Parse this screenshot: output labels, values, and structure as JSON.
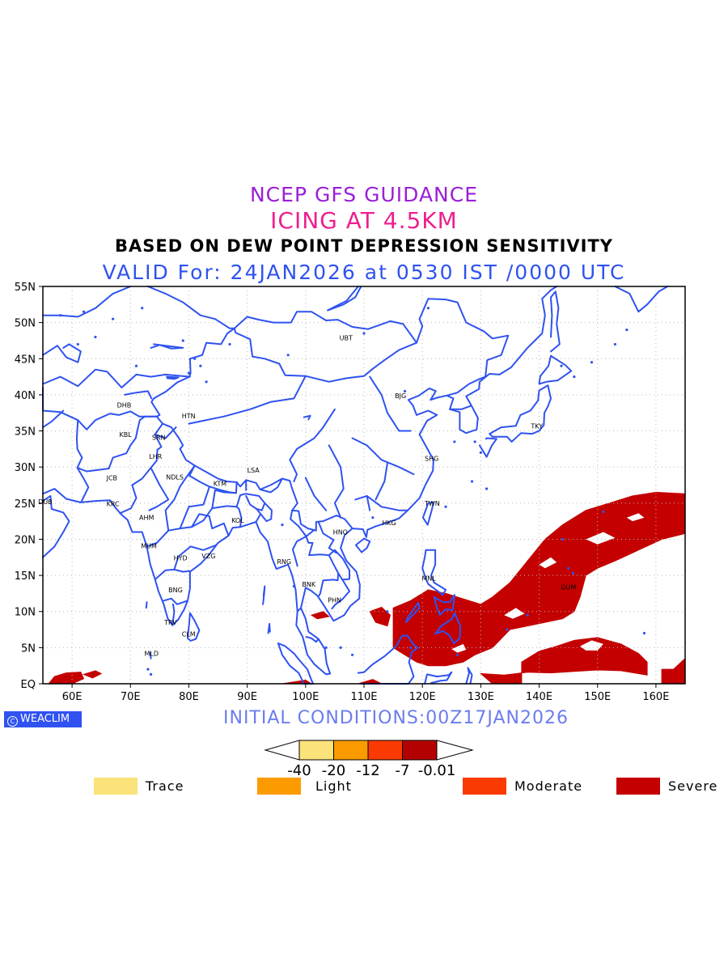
{
  "titles": {
    "line1": "NCEP GFS GUIDANCE",
    "line2": "ICING AT 4.5KM",
    "line3": "BASED ON DEW POINT DEPRESSION SENSITIVITY",
    "line4": "VALID For: 24JAN2026 at 0530 IST /0000 UTC"
  },
  "map": {
    "lon_range": [
      55,
      165
    ],
    "lat_range": [
      0,
      55
    ],
    "lat_labels": [
      "55N",
      "50N",
      "45N",
      "40N",
      "35N",
      "30N",
      "25N",
      "20N",
      "15N",
      "10N",
      "5N",
      "EQ"
    ],
    "lon_labels": [
      "60E",
      "70E",
      "80E",
      "90E",
      "100E",
      "110E",
      "120E",
      "130E",
      "140E",
      "150E",
      "160E"
    ],
    "coastline_color": "#2f52f0",
    "severe_color": "#c40000",
    "cities": [
      {
        "code": "UBT",
        "lon": 106.9,
        "lat": 47.9
      },
      {
        "code": "BJG",
        "lon": 116.4,
        "lat": 39.9
      },
      {
        "code": "DHB",
        "lon": 68.8,
        "lat": 38.6
      },
      {
        "code": "HTN",
        "lon": 79.9,
        "lat": 37.1
      },
      {
        "code": "KBL",
        "lon": 69.2,
        "lat": 34.5
      },
      {
        "code": "SRN",
        "lon": 74.8,
        "lat": 34.1
      },
      {
        "code": "TKY",
        "lon": 139.7,
        "lat": 35.7
      },
      {
        "code": "LHR",
        "lon": 74.3,
        "lat": 31.5
      },
      {
        "code": "SHG",
        "lon": 121.5,
        "lat": 31.2
      },
      {
        "code": "LSA",
        "lon": 91.1,
        "lat": 29.6
      },
      {
        "code": "JCB",
        "lon": 67.0,
        "lat": 28.5
      },
      {
        "code": "NDLS",
        "lon": 77.2,
        "lat": 28.6
      },
      {
        "code": "KTM",
        "lon": 85.3,
        "lat": 27.7
      },
      {
        "code": "DUB",
        "lon": 55.3,
        "lat": 25.2
      },
      {
        "code": "TWN",
        "lon": 121.5,
        "lat": 25.0
      },
      {
        "code": "KRC",
        "lon": 67.0,
        "lat": 24.9
      },
      {
        "code": "AHM",
        "lon": 72.6,
        "lat": 23.0
      },
      {
        "code": "KOL",
        "lon": 88.4,
        "lat": 22.6
      },
      {
        "code": "HKG",
        "lon": 114.2,
        "lat": 22.3
      },
      {
        "code": "HNO",
        "lon": 105.8,
        "lat": 21.0
      },
      {
        "code": "MUM",
        "lon": 72.9,
        "lat": 19.1
      },
      {
        "code": "HYD",
        "lon": 78.5,
        "lat": 17.4
      },
      {
        "code": "VZG",
        "lon": 83.3,
        "lat": 17.7
      },
      {
        "code": "RNG",
        "lon": 96.2,
        "lat": 16.9
      },
      {
        "code": "MNL",
        "lon": 121.0,
        "lat": 14.6
      },
      {
        "code": "BNK",
        "lon": 100.5,
        "lat": 13.8
      },
      {
        "code": "GUM",
        "lon": 144.8,
        "lat": 13.4
      },
      {
        "code": "BNG",
        "lon": 77.6,
        "lat": 13.0
      },
      {
        "code": "PHN",
        "lon": 104.9,
        "lat": 11.6
      },
      {
        "code": "TRV",
        "lon": 76.9,
        "lat": 8.5
      },
      {
        "code": "CLM",
        "lon": 79.9,
        "lat": 6.9
      },
      {
        "code": "MLD",
        "lon": 73.5,
        "lat": 4.2
      }
    ]
  },
  "footer": {
    "logo": "WEACLIM",
    "initial_conditions": "INITIAL CONDITIONS:00Z17JAN2026"
  },
  "colorbar": {
    "colors": [
      "#fbe27a",
      "#fb9b00",
      "#fa3a00",
      "#b40000"
    ],
    "tick_labels": [
      "-40",
      "-20",
      "-12",
      "-7",
      "-0.01"
    ]
  },
  "legend": [
    {
      "label": "Trace",
      "color": "#fbe27a"
    },
    {
      "label": "Light",
      "color": "#fb9b00"
    },
    {
      "label": "Moderate",
      "color": "#fa3a00"
    },
    {
      "label": "Severe",
      "color": "#c40000"
    }
  ]
}
